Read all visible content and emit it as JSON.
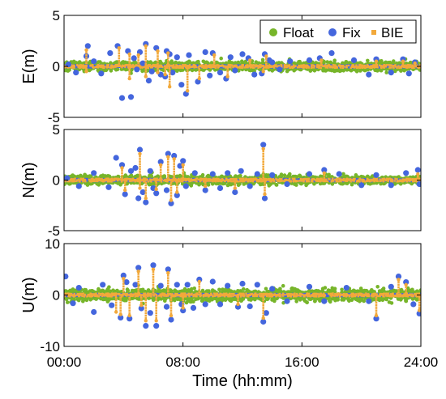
{
  "chart_data": {
    "type": "scatter",
    "xlabel": "Time (hh:mm)",
    "xlim": [
      0,
      24
    ],
    "xticks": [
      0,
      8,
      16,
      24
    ],
    "xtick_labels": [
      "00:00",
      "08:00",
      "16:00",
      "24:00"
    ],
    "legend": {
      "placement": "top-right",
      "entries": [
        "Float",
        "Fix",
        "BIE"
      ]
    },
    "colors": {
      "Float": "#77b52a",
      "Fix": "#4466dd",
      "BIE": "#f2a93b"
    },
    "panels": [
      {
        "ylabel": "E(m)",
        "ylim": [
          -5,
          5
        ],
        "yticks": [
          -5,
          0,
          5
        ],
        "series": [
          {
            "name": "Float",
            "band": [
              -0.6,
              0.6
            ]
          },
          {
            "name": "Fix",
            "points": [
              [
                0.3,
                0.2
              ],
              [
                0.8,
                -0.6
              ],
              [
                1.5,
                1.0
              ],
              [
                1.6,
                2.0
              ],
              [
                2.5,
                -0.7
              ],
              [
                3.1,
                1.3
              ],
              [
                3.6,
                2.0
              ],
              [
                3.9,
                -3.1
              ],
              [
                4.3,
                1.5
              ],
              [
                4.5,
                -3.0
              ],
              [
                4.7,
                0.8
              ],
              [
                4.9,
                -0.3
              ],
              [
                5.1,
                1.4
              ],
              [
                5.5,
                2.2
              ],
              [
                5.7,
                -1.4
              ],
              [
                5.9,
                -0.5
              ],
              [
                6.2,
                1.8
              ],
              [
                6.5,
                -0.8
              ],
              [
                6.9,
                1.5
              ],
              [
                7.1,
                1.2
              ],
              [
                7.3,
                -0.6
              ],
              [
                7.6,
                0.9
              ],
              [
                7.9,
                -1.8
              ],
              [
                8.2,
                -2.7
              ],
              [
                8.4,
                1.1
              ],
              [
                9.0,
                -1.5
              ],
              [
                9.5,
                1.4
              ],
              [
                10.0,
                1.3
              ],
              [
                10.5,
                -0.6
              ],
              [
                10.9,
                -1.2
              ],
              [
                11.2,
                0.9
              ],
              [
                11.5,
                -0.4
              ],
              [
                12.0,
                1.2
              ],
              [
                12.4,
                0.8
              ],
              [
                12.8,
                -0.8
              ],
              [
                13.3,
                -0.7
              ],
              [
                13.5,
                1.2
              ],
              [
                13.8,
                0.6
              ],
              [
                14.5,
                -0.3
              ],
              [
                15.2,
                0.5
              ],
              [
                16.5,
                0.6
              ],
              [
                17.2,
                0.8
              ],
              [
                18.0,
                1.3
              ],
              [
                19.5,
                0.6
              ],
              [
                20.5,
                -0.8
              ],
              [
                21.0,
                0.7
              ],
              [
                22.0,
                -0.6
              ],
              [
                22.8,
                0.7
              ],
              [
                23.2,
                -0.7
              ],
              [
                23.6,
                0.4
              ],
              [
                2.0,
                0.5
              ],
              [
                6.8,
                -1.0
              ],
              [
                5.3,
                0.3
              ],
              [
                9.8,
                -0.9
              ],
              [
                14.0,
                0.4
              ]
            ]
          },
          {
            "name": "BIE",
            "points": [
              [
                1.5,
                1.6
              ],
              [
                1.5,
                -0.5
              ],
              [
                3.7,
                1.8
              ],
              [
                4.4,
                1.2
              ],
              [
                4.4,
                -1.2
              ],
              [
                5.5,
                2.0
              ],
              [
                5.5,
                -1.0
              ],
              [
                6.3,
                1.5
              ],
              [
                6.3,
                -0.6
              ],
              [
                7.0,
                1.3
              ],
              [
                7.1,
                -2.0
              ],
              [
                8.3,
                -2.4
              ],
              [
                9.1,
                -1.2
              ],
              [
                10.1,
                1.1
              ],
              [
                11.0,
                -1.0
              ],
              [
                12.5,
                0.6
              ],
              [
                13.4,
                -0.5
              ],
              [
                13.6,
                1.0
              ],
              [
                17.3,
                0.6
              ],
              [
                21.0,
                0.5
              ],
              [
                22.8,
                0.5
              ],
              [
                23.6,
                0.3
              ],
              [
                5.0,
                1.1
              ],
              [
                6.8,
                -0.8
              ]
            ]
          }
        ]
      },
      {
        "ylabel": "N(m)",
        "ylim": [
          -5,
          5
        ],
        "yticks": [
          -5,
          0,
          5
        ],
        "series": [
          {
            "name": "Float",
            "band": [
              -0.6,
              0.6
            ]
          },
          {
            "name": "Fix",
            "points": [
              [
                0.2,
                0.2
              ],
              [
                1.0,
                -0.6
              ],
              [
                2.0,
                0.7
              ],
              [
                3.0,
                -0.7
              ],
              [
                3.5,
                2.2
              ],
              [
                3.9,
                1.5
              ],
              [
                4.1,
                -1.4
              ],
              [
                4.5,
                0.9
              ],
              [
                4.8,
                1.2
              ],
              [
                5.0,
                -1.8
              ],
              [
                5.1,
                3.0
              ],
              [
                5.3,
                -1.2
              ],
              [
                5.5,
                -2.2
              ],
              [
                5.8,
                0.9
              ],
              [
                6.0,
                -0.8
              ],
              [
                6.5,
                1.8
              ],
              [
                6.9,
                -1.0
              ],
              [
                7.0,
                2.6
              ],
              [
                7.2,
                -2.3
              ],
              [
                7.4,
                2.4
              ],
              [
                7.6,
                -1.5
              ],
              [
                7.8,
                1.4
              ],
              [
                8.2,
                -0.6
              ],
              [
                8.8,
                0.7
              ],
              [
                9.5,
                -1.0
              ],
              [
                10.0,
                0.6
              ],
              [
                10.5,
                -0.8
              ],
              [
                11.0,
                0.7
              ],
              [
                11.5,
                -1.2
              ],
              [
                11.9,
                0.9
              ],
              [
                12.5,
                -0.6
              ],
              [
                13.0,
                0.6
              ],
              [
                13.4,
                3.5
              ],
              [
                13.5,
                -1.8
              ],
              [
                14.0,
                0.5
              ],
              [
                15.0,
                -0.4
              ],
              [
                16.5,
                0.6
              ],
              [
                17.5,
                1.0
              ],
              [
                18.5,
                0.6
              ],
              [
                20.0,
                -0.5
              ],
              [
                21.0,
                0.5
              ],
              [
                22.0,
                -0.5
              ],
              [
                23.0,
                0.7
              ],
              [
                23.8,
                1.0
              ],
              [
                23.9,
                -0.4
              ],
              [
                6.2,
                -1.3
              ],
              [
                8.0,
                1.9
              ]
            ]
          },
          {
            "name": "BIE",
            "points": [
              [
                3.9,
                1.2
              ],
              [
                4.1,
                -1.0
              ],
              [
                5.1,
                2.6
              ],
              [
                5.1,
                -0.8
              ],
              [
                5.5,
                -1.8
              ],
              [
                6.5,
                1.5
              ],
              [
                7.0,
                2.3
              ],
              [
                7.2,
                -2.0
              ],
              [
                7.4,
                2.1
              ],
              [
                7.6,
                -1.2
              ],
              [
                9.5,
                -0.6
              ],
              [
                11.5,
                -0.8
              ],
              [
                13.4,
                3.1
              ],
              [
                13.5,
                -1.4
              ],
              [
                17.5,
                0.7
              ],
              [
                23.8,
                0.6
              ],
              [
                8.0,
                1.5
              ],
              [
                6.2,
                -0.9
              ]
            ]
          }
        ]
      },
      {
        "ylabel": "U(m)",
        "ylim": [
          -10,
          10
        ],
        "yticks": [
          -10,
          0,
          10
        ],
        "series": [
          {
            "name": "Float",
            "band": [
              -1.6,
              1.6
            ]
          },
          {
            "name": "Fix",
            "points": [
              [
                0.1,
                3.6
              ],
              [
                0.6,
                -1.6
              ],
              [
                1.0,
                1.4
              ],
              [
                2.0,
                -3.3
              ],
              [
                2.6,
                2.0
              ],
              [
                3.2,
                -2.0
              ],
              [
                3.8,
                -4.4
              ],
              [
                4.2,
                2.5
              ],
              [
                4.4,
                -4.6
              ],
              [
                4.8,
                2.0
              ],
              [
                5.0,
                5.3
              ],
              [
                5.2,
                -2.6
              ],
              [
                5.5,
                -6.0
              ],
              [
                5.8,
                -3.5
              ],
              [
                6.0,
                5.8
              ],
              [
                6.2,
                -6.0
              ],
              [
                6.5,
                1.8
              ],
              [
                6.9,
                -2.3
              ],
              [
                7.0,
                5.0
              ],
              [
                7.2,
                -4.8
              ],
              [
                7.6,
                2.0
              ],
              [
                7.9,
                -1.8
              ],
              [
                8.3,
                2.0
              ],
              [
                8.7,
                -2.5
              ],
              [
                9.1,
                3.0
              ],
              [
                9.5,
                -1.8
              ],
              [
                10.0,
                2.6
              ],
              [
                10.5,
                -1.8
              ],
              [
                11.0,
                1.8
              ],
              [
                11.7,
                -2.3
              ],
              [
                12.0,
                2.2
              ],
              [
                12.5,
                -2.2
              ],
              [
                13.0,
                2.0
              ],
              [
                13.4,
                -5.2
              ],
              [
                13.6,
                -3.5
              ],
              [
                14.0,
                1.2
              ],
              [
                15.0,
                -1.2
              ],
              [
                16.5,
                1.6
              ],
              [
                17.5,
                -1.2
              ],
              [
                19.0,
                1.4
              ],
              [
                20.5,
                -1.2
              ],
              [
                21.0,
                -4.6
              ],
              [
                22.0,
                1.6
              ],
              [
                22.5,
                3.6
              ],
              [
                23.0,
                2.5
              ],
              [
                23.5,
                -1.8
              ],
              [
                23.9,
                -3.6
              ],
              [
                4.0,
                3.8
              ],
              [
                8.0,
                -3.0
              ]
            ]
          },
          {
            "name": "BIE",
            "points": [
              [
                3.5,
                -3.3
              ],
              [
                3.8,
                -3.8
              ],
              [
                4.4,
                -4.0
              ],
              [
                5.0,
                4.6
              ],
              [
                5.2,
                -2.0
              ],
              [
                5.5,
                -5.0
              ],
              [
                6.0,
                5.0
              ],
              [
                6.2,
                -5.0
              ],
              [
                7.0,
                4.3
              ],
              [
                7.2,
                -4.0
              ],
              [
                9.1,
                2.6
              ],
              [
                11.7,
                -1.8
              ],
              [
                13.4,
                -4.5
              ],
              [
                21.0,
                -4.0
              ],
              [
                22.5,
                3.0
              ],
              [
                23.0,
                2.0
              ],
              [
                23.9,
                -3.0
              ],
              [
                4.0,
                3.2
              ],
              [
                8.0,
                -2.5
              ]
            ]
          }
        ]
      }
    ]
  }
}
